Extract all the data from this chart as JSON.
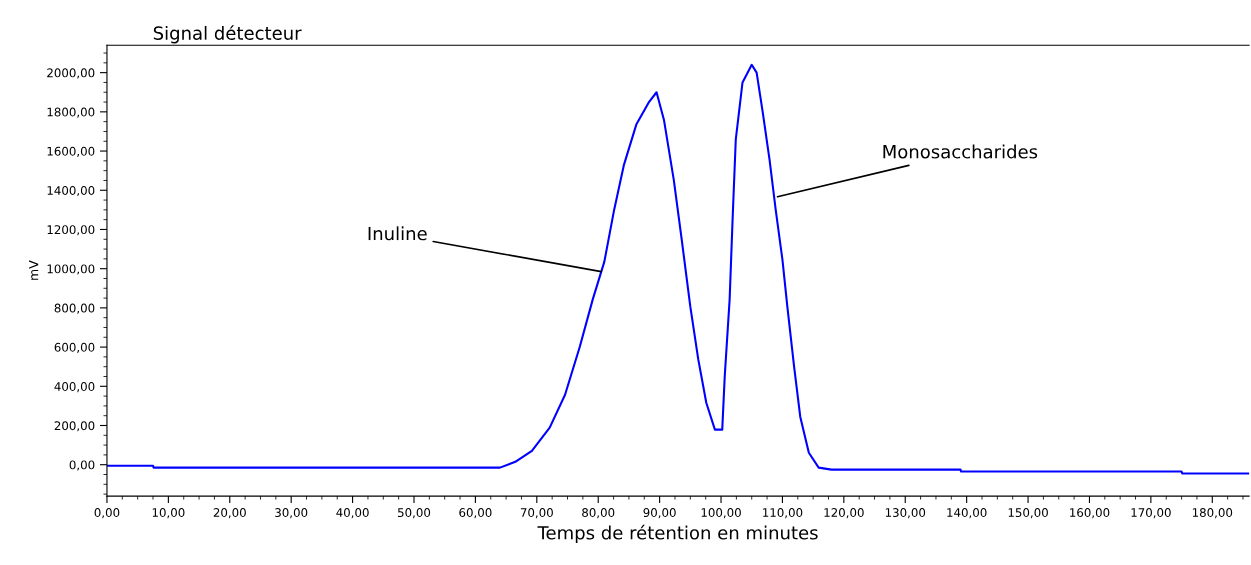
{
  "chart_data": {
    "type": "line",
    "title": "Signal détecteur",
    "xlabel": "Temps de rétention en minutes",
    "ylabel": "mV",
    "xlim": [
      0,
      186
    ],
    "ylim": [
      -160,
      2140
    ],
    "xticks": [
      {
        "value": 0,
        "label": "0,00"
      },
      {
        "value": 10,
        "label": "10,00"
      },
      {
        "value": 20,
        "label": "20,00"
      },
      {
        "value": 30,
        "label": "30,00"
      },
      {
        "value": 40,
        "label": "40,00"
      },
      {
        "value": 50,
        "label": "50,00"
      },
      {
        "value": 60,
        "label": "60,00"
      },
      {
        "value": 70,
        "label": "70,00"
      },
      {
        "value": 80,
        "label": "80,00"
      },
      {
        "value": 90,
        "label": "90,00"
      },
      {
        "value": 100,
        "label": "100,00"
      },
      {
        "value": 110,
        "label": "110,00"
      },
      {
        "value": 120,
        "label": "120,00"
      },
      {
        "value": 130,
        "label": "130,00"
      },
      {
        "value": 140,
        "label": "140,00"
      },
      {
        "value": 150,
        "label": "150,00"
      },
      {
        "value": 160,
        "label": "160,00"
      },
      {
        "value": 170,
        "label": "170,00"
      },
      {
        "value": 180,
        "label": "180,00"
      }
    ],
    "yticks": [
      {
        "value": 0,
        "label": "0,00"
      },
      {
        "value": 200,
        "label": "200,00"
      },
      {
        "value": 400,
        "label": "400,00"
      },
      {
        "value": 600,
        "label": "600,00"
      },
      {
        "value": 800,
        "label": "800,00"
      },
      {
        "value": 1000,
        "label": "1000,00"
      },
      {
        "value": 1200,
        "label": "1200,00"
      },
      {
        "value": 1400,
        "label": "1400,00"
      },
      {
        "value": 1600,
        "label": "1600,00"
      },
      {
        "value": 1800,
        "label": "1800,00"
      },
      {
        "value": 2000,
        "label": "2000,00"
      }
    ],
    "grid": false,
    "legend": false,
    "marker": "none",
    "line_style": "solid",
    "series": [
      {
        "color": "#0000ff",
        "x": [
          0,
          7.5,
          7.6,
          64,
          66.5,
          69.2,
          72.1,
          74.6,
          77,
          79.1,
          81,
          82.6,
          84.2,
          86.2,
          88.2,
          89.5,
          90.7,
          92.3,
          93.6,
          95,
          96.3,
          97.6,
          99,
          100.2,
          100.6,
          101.4,
          101.9,
          102.4,
          103.5,
          105,
          105.8,
          106.8,
          107.9,
          108.9,
          110,
          110.8,
          111.9,
          112.9,
          114.3,
          115.9,
          118,
          139,
          139.1,
          175,
          175.1,
          186
        ],
        "values": [
          -5,
          -5,
          -15,
          -15,
          15,
          71,
          189,
          357,
          602,
          842,
          1036,
          1301,
          1531,
          1735,
          1847,
          1900,
          1760,
          1454,
          1148,
          806,
          536,
          316,
          179,
          179,
          449,
          842,
          1265,
          1658,
          1950,
          2040,
          2000,
          1796,
          1556,
          1301,
          1046,
          806,
          500,
          245,
          61,
          -15,
          -25,
          -25,
          -35,
          -35,
          -45,
          -45
        ]
      }
    ],
    "annotations": [
      {
        "text": "Inuline",
        "x": 80.5,
        "y": 985
      },
      {
        "text": "Monosaccharides",
        "x": 109.2,
        "y": 1367
      }
    ]
  }
}
